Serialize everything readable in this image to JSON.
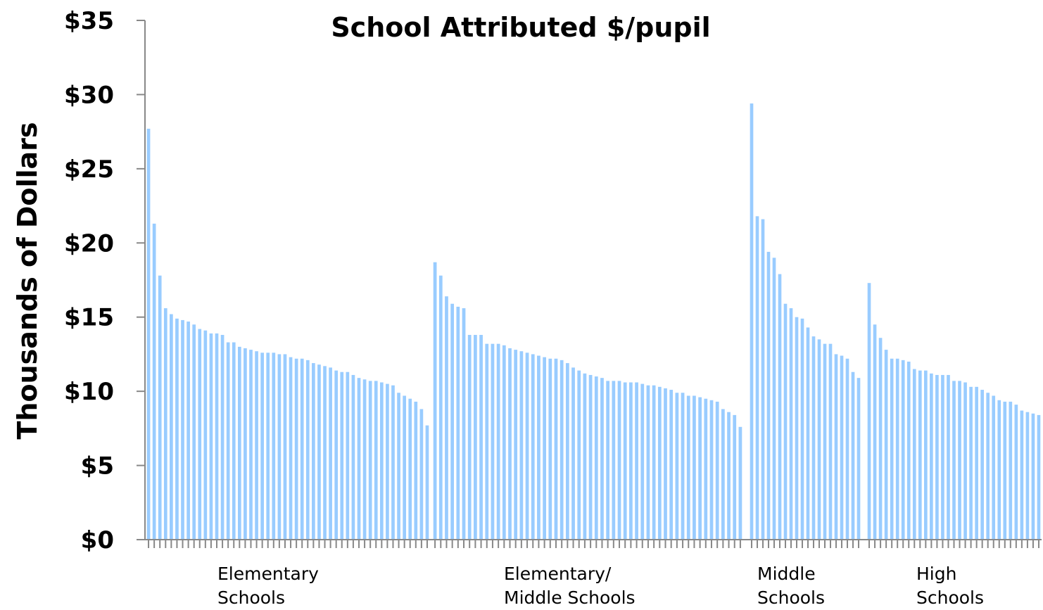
{
  "colors": {
    "bar": "#99ccff",
    "axis": "#888888",
    "text": "#000000"
  },
  "chart_data": {
    "type": "bar",
    "title": "School Attributed $/pupil",
    "ylabel": "Thousands of Dollars",
    "ylim": [
      0,
      35
    ],
    "yticks": [
      {
        "value": 0,
        "label": "$0"
      },
      {
        "value": 5,
        "label": "$5"
      },
      {
        "value": 10,
        "label": "$10"
      },
      {
        "value": 15,
        "label": "$15"
      },
      {
        "value": 20,
        "label": "$20"
      },
      {
        "value": 25,
        "label": "$25"
      },
      {
        "value": 30,
        "label": "$30"
      },
      {
        "value": 35,
        "label": "$35"
      }
    ],
    "groups": [
      {
        "label_lines": [
          "Elementary",
          "Schools"
        ],
        "values": [
          27.7,
          21.3,
          17.8,
          15.6,
          15.2,
          14.9,
          14.8,
          14.7,
          14.5,
          14.2,
          14.1,
          13.9,
          13.9,
          13.8,
          13.3,
          13.3,
          13.0,
          12.9,
          12.8,
          12.7,
          12.6,
          12.6,
          12.6,
          12.5,
          12.5,
          12.3,
          12.2,
          12.2,
          12.1,
          11.9,
          11.8,
          11.7,
          11.6,
          11.4,
          11.3,
          11.3,
          11.1,
          10.9,
          10.8,
          10.7,
          10.7,
          10.6,
          10.5,
          10.4,
          9.9,
          9.7,
          9.5,
          9.3,
          8.8,
          7.7
        ]
      },
      {
        "label_lines": [
          "Elementary/",
          "Middle Schools"
        ],
        "values": [
          18.7,
          17.8,
          16.4,
          15.9,
          15.7,
          15.6,
          13.8,
          13.8,
          13.8,
          13.2,
          13.2,
          13.2,
          13.1,
          12.9,
          12.8,
          12.7,
          12.6,
          12.5,
          12.4,
          12.3,
          12.2,
          12.2,
          12.1,
          11.9,
          11.6,
          11.4,
          11.2,
          11.1,
          11.0,
          10.9,
          10.7,
          10.7,
          10.7,
          10.6,
          10.6,
          10.6,
          10.5,
          10.4,
          10.4,
          10.3,
          10.2,
          10.1,
          9.9,
          9.9,
          9.7,
          9.7,
          9.6,
          9.5,
          9.4,
          9.3,
          8.8,
          8.6,
          8.4,
          7.6
        ]
      },
      {
        "label_lines": [
          "Middle",
          "Schools"
        ],
        "values": [
          29.4,
          21.8,
          21.6,
          19.4,
          19.0,
          17.9,
          15.9,
          15.6,
          15.0,
          14.9,
          14.3,
          13.7,
          13.5,
          13.2,
          13.2,
          12.5,
          12.4,
          12.2,
          11.3,
          10.9
        ]
      },
      {
        "label_lines": [
          "High",
          "Schools"
        ],
        "values": [
          17.3,
          14.5,
          13.6,
          12.8,
          12.2,
          12.2,
          12.1,
          12.0,
          11.5,
          11.4,
          11.4,
          11.2,
          11.1,
          11.1,
          11.1,
          10.7,
          10.7,
          10.6,
          10.3,
          10.3,
          10.1,
          9.9,
          9.7,
          9.4,
          9.3,
          9.3,
          9.1,
          8.7,
          8.6,
          8.5,
          8.4
        ]
      }
    ]
  }
}
